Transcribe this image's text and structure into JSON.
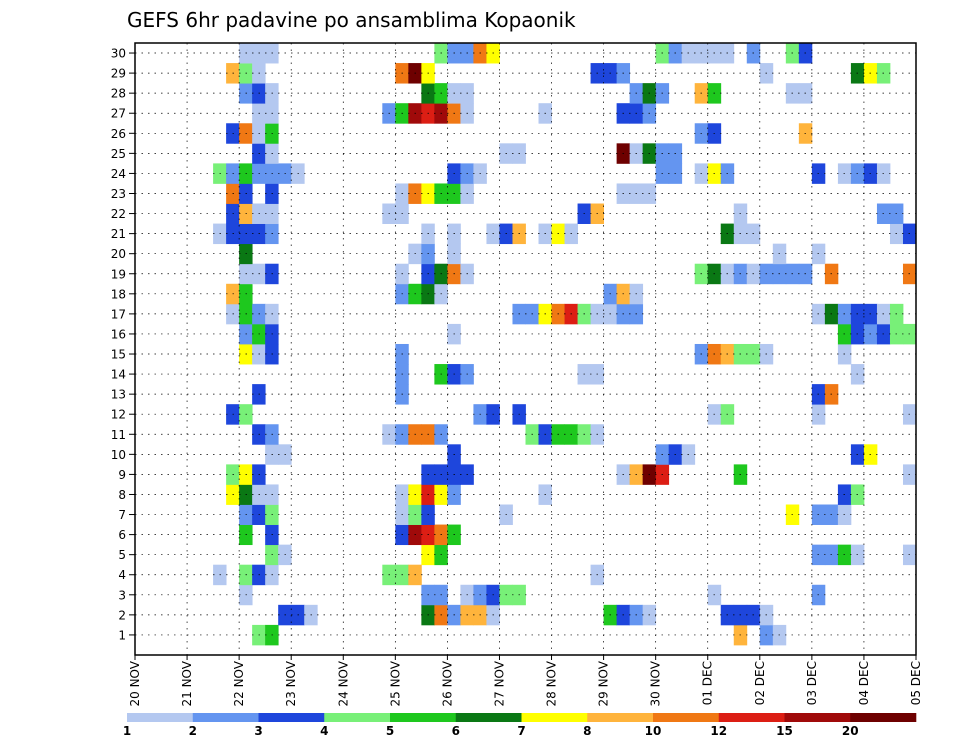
{
  "chart_data": {
    "type": "heatmap",
    "title": "GEFS 6hr padavine po ansamblima Kopaonik",
    "xlabel": "",
    "ylabel": "",
    "y_ticks": [
      "1",
      "2",
      "3",
      "4",
      "5",
      "6",
      "7",
      "8",
      "9",
      "10",
      "11",
      "12",
      "13",
      "14",
      "15",
      "16",
      "17",
      "18",
      "19",
      "20",
      "21",
      "22",
      "23",
      "24",
      "25",
      "26",
      "27",
      "28",
      "29",
      "30"
    ],
    "x_ticks": [
      "20 NOV",
      "21 NOV",
      "22 NOV",
      "23 NOV",
      "24 NOV",
      "25 NOV",
      "26 NOV",
      "27 NOV",
      "28 NOV",
      "29 NOV",
      "30 NOV",
      "01 DEC",
      "02 DEC",
      "03 DEC",
      "04 DEC",
      "05 DEC"
    ],
    "steps_per_day": 4,
    "total_steps": 60,
    "levels": [
      "1",
      "2",
      "3",
      "4",
      "5",
      "6",
      "7",
      "8",
      "10",
      "12",
      "15",
      "20"
    ],
    "level_colors": [
      "#b4c8f0",
      "#6495f0",
      "#1e46dc",
      "#78f078",
      "#1ec81e",
      "#0a7814",
      "#ffff00",
      "#ffb43c",
      "#f07814",
      "#dc1e14",
      "#a00a0a",
      "#6e0000"
    ],
    "grid": true,
    "cells": [
      [
        1,
        9,
        3
      ],
      [
        1,
        10,
        4
      ],
      [
        1,
        46,
        7
      ],
      [
        1,
        48,
        1
      ],
      [
        1,
        49,
        0
      ],
      [
        2,
        11,
        2
      ],
      [
        2,
        12,
        2
      ],
      [
        2,
        13,
        0
      ],
      [
        2,
        22,
        5
      ],
      [
        2,
        23,
        8
      ],
      [
        2,
        24,
        1
      ],
      [
        2,
        25,
        7
      ],
      [
        2,
        26,
        7
      ],
      [
        2,
        27,
        0
      ],
      [
        2,
        36,
        4
      ],
      [
        2,
        37,
        2
      ],
      [
        2,
        38,
        1
      ],
      [
        2,
        39,
        0
      ],
      [
        2,
        45,
        2
      ],
      [
        2,
        46,
        2
      ],
      [
        2,
        47,
        2
      ],
      [
        2,
        48,
        0
      ],
      [
        3,
        8,
        0
      ],
      [
        3,
        22,
        1
      ],
      [
        3,
        23,
        1
      ],
      [
        3,
        25,
        0
      ],
      [
        3,
        26,
        1
      ],
      [
        3,
        27,
        2
      ],
      [
        3,
        28,
        3
      ],
      [
        3,
        29,
        3
      ],
      [
        3,
        44,
        0
      ],
      [
        3,
        52,
        1
      ],
      [
        4,
        6,
        0
      ],
      [
        4,
        8,
        3
      ],
      [
        4,
        9,
        2
      ],
      [
        4,
        10,
        0
      ],
      [
        4,
        19,
        3
      ],
      [
        4,
        20,
        3
      ],
      [
        4,
        21,
        7
      ],
      [
        4,
        35,
        0
      ],
      [
        5,
        10,
        3
      ],
      [
        5,
        11,
        0
      ],
      [
        5,
        22,
        6
      ],
      [
        5,
        23,
        4
      ],
      [
        5,
        52,
        1
      ],
      [
        5,
        53,
        1
      ],
      [
        5,
        54,
        4
      ],
      [
        5,
        55,
        0
      ],
      [
        5,
        59,
        0
      ],
      [
        6,
        8,
        4
      ],
      [
        6,
        10,
        2
      ],
      [
        6,
        20,
        2
      ],
      [
        6,
        21,
        10
      ],
      [
        6,
        22,
        9
      ],
      [
        6,
        23,
        8
      ],
      [
        6,
        24,
        4
      ],
      [
        7,
        8,
        1
      ],
      [
        7,
        9,
        2
      ],
      [
        7,
        10,
        3
      ],
      [
        7,
        20,
        0
      ],
      [
        7,
        21,
        3
      ],
      [
        7,
        22,
        2
      ],
      [
        7,
        28,
        0
      ],
      [
        7,
        50,
        6
      ],
      [
        7,
        52,
        1
      ],
      [
        7,
        53,
        1
      ],
      [
        7,
        54,
        0
      ],
      [
        8,
        7,
        6
      ],
      [
        8,
        8,
        5
      ],
      [
        8,
        9,
        0
      ],
      [
        8,
        10,
        0
      ],
      [
        8,
        20,
        0
      ],
      [
        8,
        21,
        6
      ],
      [
        8,
        22,
        9
      ],
      [
        8,
        23,
        6
      ],
      [
        8,
        24,
        1
      ],
      [
        8,
        31,
        0
      ],
      [
        8,
        54,
        2
      ],
      [
        8,
        55,
        3
      ],
      [
        9,
        7,
        3
      ],
      [
        9,
        8,
        6
      ],
      [
        9,
        9,
        2
      ],
      [
        9,
        22,
        2
      ],
      [
        9,
        23,
        2
      ],
      [
        9,
        24,
        2
      ],
      [
        9,
        25,
        2
      ],
      [
        9,
        37,
        0
      ],
      [
        9,
        38,
        7
      ],
      [
        9,
        39,
        11
      ],
      [
        9,
        40,
        9
      ],
      [
        9,
        46,
        4
      ],
      [
        9,
        59,
        0
      ],
      [
        10,
        10,
        0
      ],
      [
        10,
        11,
        0
      ],
      [
        10,
        24,
        2
      ],
      [
        10,
        40,
        1
      ],
      [
        10,
        41,
        2
      ],
      [
        10,
        42,
        0
      ],
      [
        10,
        55,
        2
      ],
      [
        10,
        56,
        6
      ],
      [
        11,
        9,
        2
      ],
      [
        11,
        10,
        1
      ],
      [
        11,
        19,
        0
      ],
      [
        11,
        20,
        1
      ],
      [
        11,
        21,
        8
      ],
      [
        11,
        22,
        8
      ],
      [
        11,
        23,
        1
      ],
      [
        11,
        30,
        3
      ],
      [
        11,
        31,
        2
      ],
      [
        11,
        32,
        4
      ],
      [
        11,
        33,
        4
      ],
      [
        11,
        34,
        3
      ],
      [
        11,
        35,
        0
      ],
      [
        12,
        7,
        2
      ],
      [
        12,
        8,
        3
      ],
      [
        12,
        26,
        1
      ],
      [
        12,
        27,
        2
      ],
      [
        12,
        29,
        2
      ],
      [
        12,
        44,
        0
      ],
      [
        12,
        45,
        3
      ],
      [
        12,
        52,
        0
      ],
      [
        12,
        59,
        0
      ],
      [
        13,
        9,
        2
      ],
      [
        13,
        20,
        1
      ],
      [
        13,
        52,
        2
      ],
      [
        13,
        53,
        8
      ],
      [
        14,
        20,
        1
      ],
      [
        14,
        23,
        4
      ],
      [
        14,
        24,
        2
      ],
      [
        14,
        25,
        1
      ],
      [
        14,
        34,
        0
      ],
      [
        14,
        35,
        0
      ],
      [
        14,
        55,
        0
      ],
      [
        15,
        8,
        6
      ],
      [
        15,
        9,
        0
      ],
      [
        15,
        10,
        2
      ],
      [
        15,
        20,
        1
      ],
      [
        15,
        43,
        1
      ],
      [
        15,
        44,
        8
      ],
      [
        15,
        45,
        7
      ],
      [
        15,
        46,
        3
      ],
      [
        15,
        47,
        3
      ],
      [
        15,
        48,
        0
      ],
      [
        15,
        54,
        0
      ],
      [
        16,
        8,
        1
      ],
      [
        16,
        9,
        4
      ],
      [
        16,
        10,
        2
      ],
      [
        16,
        24,
        0
      ],
      [
        16,
        54,
        4
      ],
      [
        16,
        55,
        2
      ],
      [
        16,
        56,
        1
      ],
      [
        16,
        57,
        2
      ],
      [
        16,
        58,
        3
      ],
      [
        16,
        59,
        3
      ],
      [
        17,
        7,
        0
      ],
      [
        17,
        8,
        4
      ],
      [
        17,
        9,
        1
      ],
      [
        17,
        10,
        0
      ],
      [
        17,
        29,
        1
      ],
      [
        17,
        30,
        1
      ],
      [
        17,
        31,
        6
      ],
      [
        17,
        32,
        8
      ],
      [
        17,
        33,
        9
      ],
      [
        17,
        34,
        3
      ],
      [
        17,
        35,
        0
      ],
      [
        17,
        36,
        0
      ],
      [
        17,
        37,
        1
      ],
      [
        17,
        38,
        1
      ],
      [
        17,
        52,
        0
      ],
      [
        17,
        53,
        5
      ],
      [
        17,
        54,
        1
      ],
      [
        17,
        55,
        2
      ],
      [
        17,
        56,
        2
      ],
      [
        17,
        57,
        0
      ],
      [
        17,
        58,
        3
      ],
      [
        18,
        7,
        7
      ],
      [
        18,
        8,
        4
      ],
      [
        18,
        20,
        1
      ],
      [
        18,
        21,
        4
      ],
      [
        18,
        22,
        5
      ],
      [
        18,
        23,
        0
      ],
      [
        18,
        36,
        1
      ],
      [
        18,
        37,
        7
      ],
      [
        18,
        38,
        0
      ],
      [
        19,
        8,
        0
      ],
      [
        19,
        9,
        0
      ],
      [
        19,
        10,
        2
      ],
      [
        19,
        20,
        0
      ],
      [
        19,
        22,
        2
      ],
      [
        19,
        23,
        5
      ],
      [
        19,
        24,
        8
      ],
      [
        19,
        25,
        0
      ],
      [
        19,
        43,
        3
      ],
      [
        19,
        44,
        5
      ],
      [
        19,
        45,
        0
      ],
      [
        19,
        46,
        1
      ],
      [
        19,
        47,
        0
      ],
      [
        19,
        48,
        1
      ],
      [
        19,
        49,
        1
      ],
      [
        19,
        50,
        1
      ],
      [
        19,
        51,
        1
      ],
      [
        19,
        53,
        8
      ],
      [
        19,
        59,
        8
      ],
      [
        20,
        8,
        5
      ],
      [
        20,
        21,
        0
      ],
      [
        20,
        22,
        1
      ],
      [
        20,
        24,
        0
      ],
      [
        20,
        49,
        0
      ],
      [
        20,
        52,
        0
      ],
      [
        21,
        6,
        0
      ],
      [
        21,
        7,
        2
      ],
      [
        21,
        8,
        2
      ],
      [
        21,
        9,
        2
      ],
      [
        21,
        10,
        1
      ],
      [
        21,
        22,
        0
      ],
      [
        21,
        24,
        0
      ],
      [
        21,
        27,
        0
      ],
      [
        21,
        28,
        2
      ],
      [
        21,
        29,
        7
      ],
      [
        21,
        31,
        0
      ],
      [
        21,
        32,
        6
      ],
      [
        21,
        33,
        0
      ],
      [
        21,
        45,
        5
      ],
      [
        21,
        46,
        0
      ],
      [
        21,
        47,
        0
      ],
      [
        21,
        58,
        0
      ],
      [
        21,
        59,
        2
      ],
      [
        22,
        7,
        2
      ],
      [
        22,
        8,
        7
      ],
      [
        22,
        9,
        0
      ],
      [
        22,
        10,
        0
      ],
      [
        22,
        19,
        0
      ],
      [
        22,
        20,
        0
      ],
      [
        22,
        34,
        2
      ],
      [
        22,
        35,
        7
      ],
      [
        22,
        46,
        0
      ],
      [
        22,
        57,
        1
      ],
      [
        22,
        58,
        1
      ],
      [
        23,
        7,
        8
      ],
      [
        23,
        8,
        2
      ],
      [
        23,
        10,
        2
      ],
      [
        23,
        20,
        0
      ],
      [
        23,
        21,
        8
      ],
      [
        23,
        22,
        6
      ],
      [
        23,
        23,
        4
      ],
      [
        23,
        24,
        4
      ],
      [
        23,
        25,
        0
      ],
      [
        23,
        37,
        0
      ],
      [
        23,
        38,
        0
      ],
      [
        23,
        39,
        0
      ],
      [
        24,
        6,
        3
      ],
      [
        24,
        7,
        1
      ],
      [
        24,
        8,
        4
      ],
      [
        24,
        9,
        1
      ],
      [
        24,
        10,
        1
      ],
      [
        24,
        11,
        1
      ],
      [
        24,
        12,
        0
      ],
      [
        24,
        24,
        2
      ],
      [
        24,
        25,
        1
      ],
      [
        24,
        26,
        0
      ],
      [
        24,
        40,
        1
      ],
      [
        24,
        41,
        1
      ],
      [
        24,
        43,
        0
      ],
      [
        24,
        44,
        6
      ],
      [
        24,
        45,
        1
      ],
      [
        24,
        52,
        2
      ],
      [
        24,
        54,
        0
      ],
      [
        24,
        55,
        1
      ],
      [
        24,
        56,
        2
      ],
      [
        24,
        57,
        0
      ],
      [
        25,
        9,
        2
      ],
      [
        25,
        10,
        0
      ],
      [
        25,
        28,
        0
      ],
      [
        25,
        29,
        0
      ],
      [
        25,
        37,
        11
      ],
      [
        25,
        38,
        0
      ],
      [
        25,
        39,
        5
      ],
      [
        25,
        40,
        1
      ],
      [
        25,
        41,
        1
      ],
      [
        26,
        7,
        2
      ],
      [
        26,
        8,
        8
      ],
      [
        26,
        9,
        0
      ],
      [
        26,
        10,
        4
      ],
      [
        26,
        43,
        1
      ],
      [
        26,
        44,
        2
      ],
      [
        26,
        51,
        7
      ],
      [
        27,
        9,
        0
      ],
      [
        27,
        10,
        0
      ],
      [
        27,
        19,
        1
      ],
      [
        27,
        20,
        4
      ],
      [
        27,
        21,
        10
      ],
      [
        27,
        22,
        9
      ],
      [
        27,
        23,
        10
      ],
      [
        27,
        24,
        8
      ],
      [
        27,
        25,
        0
      ],
      [
        27,
        31,
        0
      ],
      [
        27,
        37,
        2
      ],
      [
        27,
        38,
        2
      ],
      [
        27,
        39,
        1
      ],
      [
        28,
        8,
        1
      ],
      [
        28,
        9,
        2
      ],
      [
        28,
        10,
        0
      ],
      [
        28,
        22,
        5
      ],
      [
        28,
        23,
        4
      ],
      [
        28,
        24,
        0
      ],
      [
        28,
        25,
        0
      ],
      [
        28,
        38,
        1
      ],
      [
        28,
        39,
        5
      ],
      [
        28,
        40,
        1
      ],
      [
        28,
        43,
        7
      ],
      [
        28,
        44,
        4
      ],
      [
        28,
        50,
        0
      ],
      [
        28,
        51,
        0
      ],
      [
        29,
        7,
        7
      ],
      [
        29,
        8,
        3
      ],
      [
        29,
        9,
        0
      ],
      [
        29,
        20,
        8
      ],
      [
        29,
        21,
        11
      ],
      [
        29,
        22,
        6
      ],
      [
        29,
        35,
        2
      ],
      [
        29,
        36,
        2
      ],
      [
        29,
        37,
        1
      ],
      [
        29,
        48,
        0
      ],
      [
        29,
        55,
        5
      ],
      [
        29,
        56,
        6
      ],
      [
        29,
        57,
        3
      ],
      [
        30,
        8,
        0
      ],
      [
        30,
        9,
        0
      ],
      [
        30,
        10,
        0
      ],
      [
        30,
        23,
        3
      ],
      [
        30,
        24,
        1
      ],
      [
        30,
        25,
        1
      ],
      [
        30,
        26,
        8
      ],
      [
        30,
        27,
        6
      ],
      [
        30,
        40,
        3
      ],
      [
        30,
        41,
        1
      ],
      [
        30,
        42,
        0
      ],
      [
        30,
        43,
        0
      ],
      [
        30,
        44,
        0
      ],
      [
        30,
        45,
        0
      ],
      [
        30,
        47,
        1
      ],
      [
        30,
        50,
        3
      ],
      [
        30,
        51,
        2
      ]
    ]
  }
}
